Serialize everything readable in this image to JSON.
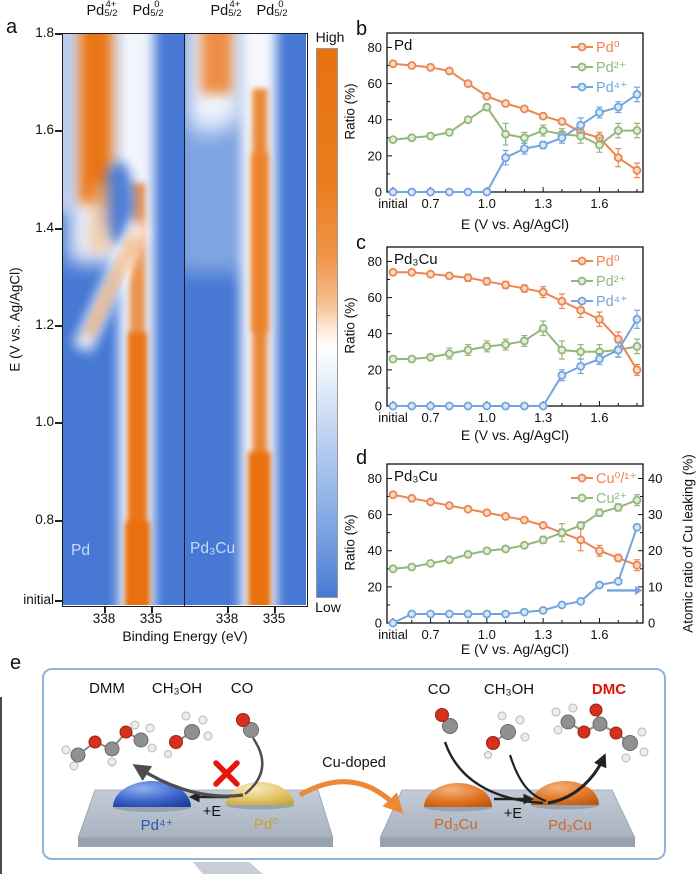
{
  "colors": {
    "heat_blue": "#4678D4",
    "heat_orange": "#E8720F",
    "line_orange": "#EC8650",
    "line_green": "#93B77B",
    "line_blue": "#74A4DE",
    "dmc_red": "#E0140A",
    "cu_arrow_orange": "#ED8936",
    "pd4_label_blue": "#2E55B2",
    "pd0_label_yellow": "#C9A227",
    "pd3cu_label_orange": "#D2691E"
  },
  "chart_data": [
    {
      "id": "b",
      "type": "line",
      "letter": "b",
      "label": "Pd",
      "ylabel": "Ratio (%)",
      "xlabel": "E (V vs. Ag/AgCl)",
      "ylim": [
        0,
        88
      ],
      "yticks": [
        0,
        20,
        40,
        60,
        80
      ],
      "grid": false,
      "legend_position": "top-right",
      "categories": [
        "initial",
        "0.6",
        "0.7",
        "0.8",
        "0.9",
        "1.0",
        "1.1",
        "1.2",
        "1.3",
        "1.4",
        "1.5",
        "1.6",
        "1.7",
        "1.8"
      ],
      "xticks": {
        "idx": [
          0,
          2,
          5,
          8,
          11
        ],
        "labels": [
          "initial",
          "0.7",
          "1.0",
          "1.3",
          "1.6"
        ]
      },
      "series": [
        {
          "name": "Pd⁰",
          "color": "#EC8650",
          "fill": "#F8DCC8",
          "values": [
            71,
            70,
            69,
            67,
            60,
            53,
            49,
            46,
            42,
            39,
            33,
            30,
            19,
            12
          ],
          "err": [
            0,
            0,
            0,
            0,
            0,
            0,
            0,
            0,
            0,
            0,
            3,
            3,
            5,
            4
          ]
        },
        {
          "name": "Pd²⁺",
          "color": "#93B77B",
          "fill": "#E3EDD9",
          "values": [
            29,
            30,
            31,
            33,
            40,
            47,
            32,
            30,
            34,
            32,
            31,
            26,
            34,
            34
          ],
          "err": [
            0,
            0,
            0,
            0,
            0,
            0,
            6,
            3,
            3,
            3,
            4,
            4,
            4,
            4
          ]
        },
        {
          "name": "Pd⁴⁺",
          "color": "#74A4DE",
          "fill": "#D9E8F8",
          "values": [
            0,
            0,
            0,
            0,
            0,
            0,
            19,
            24,
            26,
            30,
            37,
            44,
            47,
            54
          ],
          "err": [
            0,
            0,
            0,
            0,
            0,
            0,
            4,
            3,
            2,
            3,
            4,
            3,
            3,
            4
          ]
        }
      ]
    },
    {
      "id": "c",
      "type": "line",
      "letter": "c",
      "label": "Pd₃Cu",
      "ylabel": "Ratio (%)",
      "xlabel": "E (V vs. Ag/AgCl)",
      "ylim": [
        0,
        88
      ],
      "yticks": [
        0,
        20,
        40,
        60,
        80
      ],
      "grid": false,
      "legend_position": "top-right",
      "categories": [
        "initial",
        "0.6",
        "0.7",
        "0.8",
        "0.9",
        "1.0",
        "1.1",
        "1.2",
        "1.3",
        "1.4",
        "1.5",
        "1.6",
        "1.7",
        "1.8"
      ],
      "xticks": {
        "idx": [
          0,
          2,
          5,
          8,
          11
        ],
        "labels": [
          "initial",
          "0.7",
          "1.0",
          "1.3",
          "1.6"
        ]
      },
      "series": [
        {
          "name": "Pd⁰",
          "color": "#EC8650",
          "fill": "#F8DCC8",
          "values": [
            74,
            74,
            73,
            72,
            71,
            69,
            67,
            65,
            63,
            58,
            53,
            48,
            37,
            20
          ],
          "err": [
            0,
            0,
            0,
            0,
            2,
            2,
            2,
            2,
            3,
            4,
            4,
            4,
            4,
            3
          ]
        },
        {
          "name": "Pd²⁺",
          "color": "#93B77B",
          "fill": "#E3EDD9",
          "values": [
            26,
            26,
            27,
            29,
            31,
            33,
            34,
            36,
            43,
            31,
            30,
            30,
            31,
            33
          ],
          "err": [
            0,
            0,
            0,
            3,
            3,
            3,
            3,
            3,
            4,
            5,
            4,
            4,
            4,
            4
          ]
        },
        {
          "name": "Pd⁴⁺",
          "color": "#74A4DE",
          "fill": "#D9E8F8",
          "values": [
            0,
            0,
            0,
            0,
            0,
            0,
            0,
            0,
            0,
            17,
            22,
            26,
            31,
            48
          ],
          "err": [
            0,
            0,
            0,
            0,
            0,
            0,
            0,
            0,
            0,
            3,
            4,
            3,
            4,
            5
          ]
        }
      ]
    },
    {
      "id": "d",
      "type": "line",
      "letter": "d",
      "label": "Pd₃Cu",
      "ylabel": "Ratio (%)",
      "xlabel": "E (V vs. Ag/AgCl)",
      "ylim": [
        0,
        88
      ],
      "yticks": [
        0,
        20,
        40,
        60,
        80
      ],
      "grid": false,
      "legend_position": "top-right",
      "right_axis": {
        "label": "Atomic ratio of Cu leaking (%)",
        "ticks": [
          0,
          10,
          20,
          30,
          40
        ],
        "max": 44
      },
      "arrow": {
        "right_value": 9,
        "color": "#74A4DE"
      },
      "categories": [
        "initial",
        "0.6",
        "0.7",
        "0.8",
        "0.9",
        "1.0",
        "1.1",
        "1.2",
        "1.3",
        "1.4",
        "1.5",
        "1.6",
        "1.7",
        "1.8"
      ],
      "xticks": {
        "idx": [
          0,
          2,
          5,
          8,
          11
        ],
        "labels": [
          "initial",
          "0.7",
          "1.0",
          "1.3",
          "1.6"
        ]
      },
      "series": [
        {
          "name": "Cu⁰/¹⁺",
          "color": "#EC8650",
          "fill": "#F8DCC8",
          "values": [
            71,
            69,
            67,
            65,
            63,
            61,
            59,
            57,
            54,
            50,
            46,
            40,
            36,
            32
          ],
          "err": [
            0,
            0,
            0,
            0,
            0,
            0,
            0,
            0,
            0,
            2,
            6,
            3,
            2,
            3
          ]
        },
        {
          "name": "Cu²⁺",
          "color": "#93B77B",
          "fill": "#E3EDD9",
          "values": [
            30,
            31,
            33,
            35,
            38,
            40,
            41,
            43,
            46,
            50,
            54,
            61,
            64,
            68
          ],
          "err": [
            0,
            0,
            0,
            0,
            0,
            0,
            0,
            0,
            2,
            5,
            2,
            2,
            2,
            3
          ]
        },
        {
          "name": "Cu leaking",
          "color": "#74A4DE",
          "fill": "#D9E8F8",
          "axis": "right",
          "legend": false,
          "values": [
            0,
            2.5,
            2.5,
            2.5,
            2.5,
            2.5,
            2.5,
            3,
            3.5,
            5,
            6,
            10.5,
            11.5,
            26.5
          ],
          "err": [
            0,
            0,
            0,
            0,
            0,
            0,
            0,
            0,
            0,
            0,
            0,
            0,
            0,
            0
          ]
        }
      ]
    },
    {
      "id": "a",
      "type": "heatmap",
      "letter": "a",
      "xlabel": "Binding Energy (eV)",
      "ylabel": "E (V vs. Ag/AgCl)",
      "yticks": [
        "1.8",
        "1.6",
        "1.4",
        "1.2",
        "1.0",
        "0.8",
        "initial"
      ],
      "xtick_values": [
        "338",
        "335",
        "338",
        "335"
      ],
      "col_labels": [
        {
          "base": "Pd",
          "sup": "4+",
          "sub": "5/2"
        },
        {
          "base": "Pd",
          "sup": "0",
          "sub": "5/2"
        },
        {
          "base": "Pd",
          "sup": "4+",
          "sub": "5/2"
        },
        {
          "base": "Pd",
          "sup": "0",
          "sub": "5/2"
        }
      ],
      "panels": [
        {
          "label": "Pd",
          "description": "Pd4+ band at ~338 eV intense from 1.8 down to ~1.45 V, transitions diagonally to Pd0 band at ~335.5 eV which dominates from ~1.3 V to initial"
        },
        {
          "label": "Pd₃Cu",
          "description": "Pd0 band at ~335.5 eV persists over nearly full potential range; weak Pd4+ feature at ~338 eV only above ~1.7 V"
        }
      ],
      "colorbar": {
        "high": "High",
        "low": "Low"
      }
    }
  ],
  "panel_e": {
    "letter": "e",
    "left": {
      "mol_labels": [
        "DMM",
        "CH₃OH",
        "CO"
      ],
      "dome_labels": [
        "Pd⁴⁺",
        "Pd⁰"
      ],
      "arrow_label": "+E"
    },
    "center": {
      "arrow_label": "Cu-doped"
    },
    "right": {
      "mol_labels": [
        "CO",
        "CH₃OH",
        "DMC"
      ],
      "dome_labels": [
        "Pd₃Cu",
        "Pd₃Cu"
      ],
      "arrow_label": "+E"
    }
  }
}
